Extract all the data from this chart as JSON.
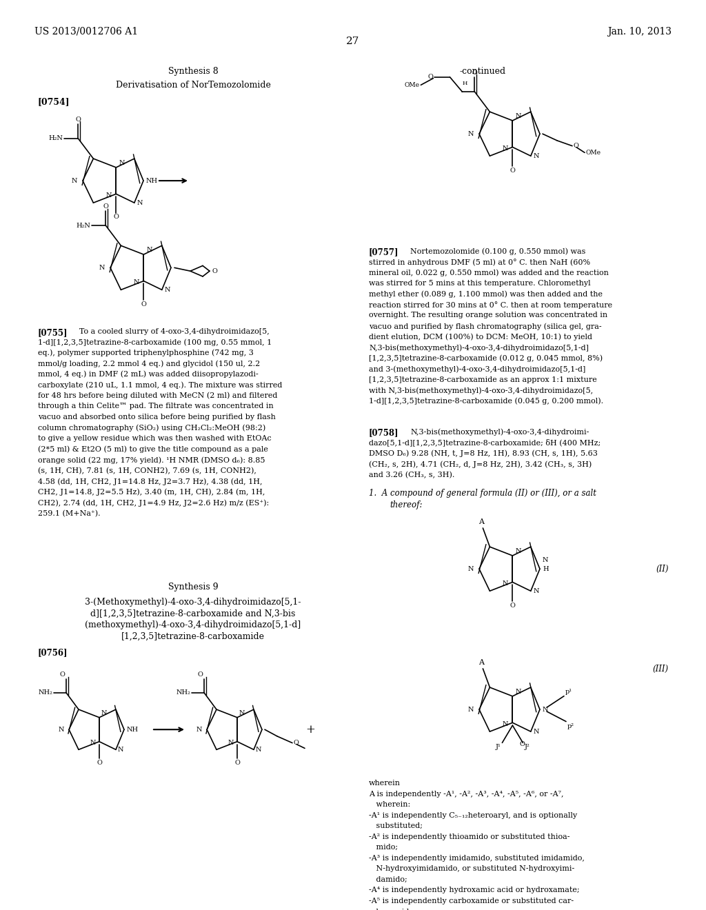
{
  "page_header_left": "US 2013/0012706 A1",
  "page_header_right": "Jan. 10, 2013",
  "page_number": "27",
  "background_color": "#ffffff",
  "text_color": "#000000",
  "synthesis8_title": "Synthesis 8",
  "synthesis8_subtitle": "Derivatisation of NorTemozolomide",
  "continued_label": "-continued",
  "para0754_label": "[0754]",
  "para0755_label": "[0755]",
  "para0755_text": "To a cooled slurry of 4-oxo-3,4-dihydroimidazo[5,\n1-d][1,2,3,5]tetrazine-8-carboxamide (100 mg, 0.55 mmol, 1\neq.), polymer supported triphenylphosphine (742 mg, 3\nmmol/g loading, 2.2 mmol 4 eq.) and glycidol (150 ul, 2.2\nmmol, 4 eq.) in DMF (2 mL) was added diisopropylazodi-\ncarboxylate (210 uL, 1.1 mmol, 4 eq.). The mixture was stirred\nfor 48 hrs before being diluted with MeCN (2 ml) and filtered\nthrough a thin Celite™ pad. The filtrate was concentrated in\nvacuo and absorbed onto silica before being purified by flash\ncolumn chromatography (SiO₂) using CH₂Cl₂:MeOH (98:2)\nto give a yellow residue which was then washed with EtOAc\n(2*5 ml) & Et2O (5 ml) to give the title compound as a pale\norange solid (22 mg, 17% yield). ¹H NMR (DMSO d₆): 8.85\n(s, 1H, CH), 7.81 (s, 1H, CONH2), 7.69 (s, 1H, CONH2),\n4.58 (dd, 1H, CH2, J1=14.8 Hz, J2=3.7 Hz), 4.38 (dd, 1H,\nCH2, J1=14.8, J2=5.5 Hz), 3.40 (m, 1H, CH), 2.84 (m, 1H,\nCH2), 2.74 (dd, 1H, CH2, J1=4.9 Hz, J2=2.6 Hz) m/z (ES⁺):\n259.1 (M+Na⁺).",
  "synthesis9_title": "Synthesis 9",
  "synthesis9_line1": "3-(Methoxymethyl)-4-oxo-3,4-dihydroimidazo[5,1-",
  "synthesis9_line2": "d][1,2,3,5]tetrazine-8-carboxamide and N,3-bis",
  "synthesis9_line3": "(methoxymethyl)-4-oxo-3,4-dihydroimidazo[5,1-d]",
  "synthesis9_line4": "[1,2,3,5]tetrazine-8-carboxamide",
  "para0756_label": "[0756]",
  "para0757_label": "[0757]",
  "para0757_text": "Nortemozolomide (0.100 g, 0.550 mmol) was\nstirred in anhydrous DMF (5 ml) at 0° C. then NaH (60%\nmineral oil, 0.022 g, 0.550 mmol) was added and the reaction\nwas stirred for 5 mins at this temperature. Chloromethyl\nmethyl ether (0.089 g, 1.100 mmol) was then added and the\nreaction stirred for 30 mins at 0° C. then at room temperature\novernight. The resulting orange solution was concentrated in\nvacuo and purified by flash chromatography (silica gel, gra-\ndient elution, DCM (100%) to DCM: MeOH, 10:1) to yield\nN,3-bis(methoxymethyl)-4-oxo-3,4-dihydroimidazo[5,1-d]\n[1,2,3,5]tetrazine-8-carboxamide (0.012 g, 0.045 mmol, 8%)\nand 3-(methoxymethyl)-4-oxo-3,4-dihydroimidazo[5,1-d]\n[1,2,3,5]tetrazine-8-carboxamide as an approx 1:1 mixture\nwith N,3-bis(methoxymethyl)-4-oxo-3,4-dihydroimidazo[5,\n1-d][1,2,3,5]tetrazine-8-carboxamide (0.045 g, 0.200 mmol).",
  "para0758_label": "[0758]",
  "para0758_text": "N,3-bis(methoxymethyl)-4-oxo-3,4-dihydroimi-\ndazo[5,1-d][1,2,3,5]tetrazine-8-carboxamide; δH (400 MHz;\nDMSO D₆) 9.28 (NH, t, J=8 Hz, 1H), 8.93 (CH, s, 1H), 5.63\n(CH₂, s, 2H), 4.71 (CH₂, d, J=8 Hz, 2H), 3.42 (CH₃, s, 3H)\nand 3.26 (CH₃, s, 3H).",
  "claim1_line1": "1.  A compound of general formula (II) or (III), or a salt",
  "claim1_line2": "thereof:",
  "formula_II_label": "(II)",
  "formula_III_label": "(III)",
  "wherein_lines": [
    "wherein",
    "A is independently -A¹, -A², -A³, -A⁴, -A⁵, -A⁶, or -A⁷,",
    "   wherein:",
    "-A¹ is independently C₅₋₁₂heteroaryl, and is optionally",
    "   substituted;",
    "-A² is independently thioamido or substituted thioa-",
    "   mido;",
    "-A³ is independently imidamido, substituted imidamido,",
    "   N-hydroxyimidamido, or substituted N-hydroxyimi-",
    "   damido;",
    "-A⁴ is independently hydroxamic acid or hydroxamate;",
    "-A⁵ is independently carboxamide or substituted car-",
    "   boxamide;"
  ]
}
